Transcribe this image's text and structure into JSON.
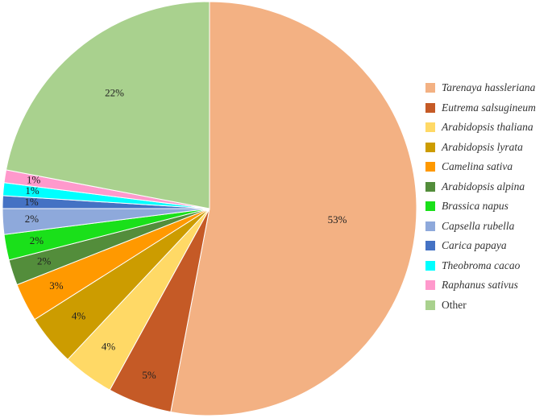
{
  "chart_data": {
    "type": "pie",
    "start": "12 o'clock",
    "direction": "clockwise",
    "legend_position": "right",
    "slices": [
      {
        "label": "Tarenaya hassleriana",
        "value": 53,
        "display": "53%",
        "color": "#F3B183",
        "italic": true
      },
      {
        "label": "Eutrema salsugineum",
        "value": 5,
        "display": "5%",
        "color": "#C55A26",
        "italic": true
      },
      {
        "label": "Arabidopsis thaliana",
        "value": 4,
        "display": "4%",
        "color": "#FFD966",
        "italic": true
      },
      {
        "label": "Arabidopsis lyrata",
        "value": 4,
        "display": "4%",
        "color": "#CC9C00",
        "italic": true
      },
      {
        "label": "Camelina sativa",
        "value": 3,
        "display": "3%",
        "color": "#FF9900",
        "italic": true
      },
      {
        "label": "Arabidopsis alpina",
        "value": 2,
        "display": "2%",
        "color": "#538D3B",
        "italic": true
      },
      {
        "label": "Brassica napus",
        "value": 2,
        "display": "2%",
        "color": "#1AE01A",
        "italic": true
      },
      {
        "label": "Capsella rubella",
        "value": 2,
        "display": "2%",
        "color": "#8EA9DB",
        "italic": true
      },
      {
        "label": "Carica papaya",
        "value": 1,
        "display": "1%",
        "color": "#4472C4",
        "italic": true
      },
      {
        "label": "Theobroma cacao",
        "value": 1,
        "display": "1%",
        "color": "#00FFFF",
        "italic": true
      },
      {
        "label": "Raphanus sativus",
        "value": 1,
        "display": "1%",
        "color": "#FF99CC",
        "italic": true
      },
      {
        "label": "Other",
        "value": 22,
        "display": "22%",
        "color": "#A9D18E",
        "italic": false
      }
    ]
  }
}
